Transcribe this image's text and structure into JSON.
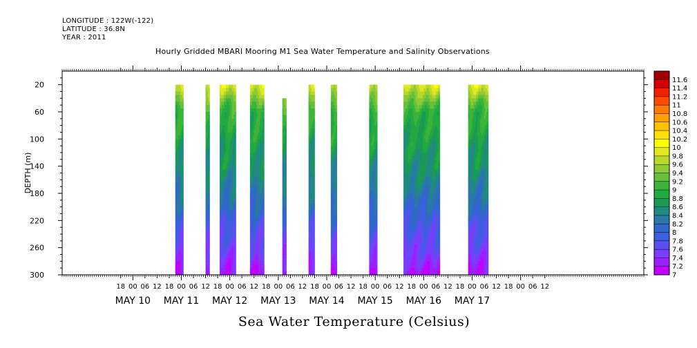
{
  "header": {
    "longitude": "LONGITUDE : 122W(-122)",
    "latitude": "LATITUDE : 36.8N",
    "year": "YEAR : 2011",
    "title": "Hourly Gridded MBARI Mooring M1 Sea Water Temperature and Salinity Observations"
  },
  "chart_data": {
    "type": "heatmap",
    "title": "Hourly Gridded MBARI Mooring M1 Sea Water Temperature and Salinity Observations",
    "xlabel": "",
    "ylabel": "DEPTH (m)",
    "colorbar_label": "Sea Water Temperature (Celsius)",
    "y_reversed": true,
    "ylim": [
      0,
      300
    ],
    "xlim_hours_may": [
      205,
      493
    ],
    "yticks": [
      20,
      60,
      100,
      140,
      180,
      220,
      260,
      300
    ],
    "x_hour_ticks": [
      "18",
      "00",
      "06",
      "12",
      "18",
      "00",
      "06",
      "12",
      "18",
      "00",
      "06",
      "12",
      "18",
      "00",
      "06",
      "12",
      "18",
      "00",
      "06",
      "12",
      "18",
      "00",
      "06",
      "12",
      "18",
      "00",
      "06",
      "12",
      "18",
      "00",
      "06",
      "12",
      "18",
      "00",
      "06",
      "12"
    ],
    "x_day_labels": [
      "MAY 10",
      "MAY 11",
      "MAY 12",
      "MAY 13",
      "MAY 14",
      "MAY 15",
      "MAY 16",
      "MAY 17"
    ],
    "colorbar_levels": [
      "7",
      "7.2",
      "7.4",
      "7.6",
      "7.8",
      "8",
      "8.2",
      "8.4",
      "8.6",
      "8.8",
      "9",
      "9.2",
      "9.4",
      "9.6",
      "9.8",
      "10",
      "10.2",
      "10.4",
      "10.6",
      "10.8",
      "11",
      "11.2",
      "11.4",
      "11.6"
    ],
    "colorbar_colors": [
      "#c000ff",
      "#9a20ff",
      "#7a3cff",
      "#5a50f0",
      "#3e5ee0",
      "#2f68c8",
      "#2a78a8",
      "#1f8a80",
      "#1a9a55",
      "#22aa40",
      "#3cb43a",
      "#66c03a",
      "#90ca32",
      "#b8d82a",
      "#e0e820",
      "#ffff00",
      "#ffe000",
      "#ffc000",
      "#ffa000",
      "#ff7a00",
      "#ff4a00",
      "#f02000",
      "#d40000",
      "#a00000"
    ],
    "observation_windows": [
      {
        "start": "May 10 21:00",
        "end": "May 11 01:00",
        "top_depth": 20
      },
      {
        "start": "May 11 12:00",
        "end": "May 11 14:00",
        "top_depth": 20
      },
      {
        "start": "May 11 19:00",
        "end": "May 12 03:00",
        "top_depth": 20
      },
      {
        "start": "May 12 10:00",
        "end": "May 12 17:00",
        "top_depth": 20
      },
      {
        "start": "May 13 02:00",
        "end": "May 13 04:00",
        "top_depth": 40
      },
      {
        "start": "May 13 15:00",
        "end": "May 13 18:00",
        "top_depth": 20
      },
      {
        "start": "May 14 02:00",
        "end": "May 14 05:00",
        "top_depth": 20
      },
      {
        "start": "May 14 21:00",
        "end": "May 15 01:00",
        "top_depth": 20
      },
      {
        "start": "May 15 14:00",
        "end": "May 16 08:00",
        "top_depth": 20
      },
      {
        "start": "May 16 22:00",
        "end": "May 17 08:00",
        "top_depth": 20
      }
    ],
    "temperature_profile": [
      {
        "depth": 20,
        "temp": 9.9
      },
      {
        "depth": 40,
        "temp": 9.4
      },
      {
        "depth": 60,
        "temp": 9.0
      },
      {
        "depth": 100,
        "temp": 8.8
      },
      {
        "depth": 140,
        "temp": 8.6
      },
      {
        "depth": 180,
        "temp": 8.3
      },
      {
        "depth": 220,
        "temp": 7.9
      },
      {
        "depth": 260,
        "temp": 7.6
      },
      {
        "depth": 300,
        "temp": 7.2
      }
    ]
  }
}
